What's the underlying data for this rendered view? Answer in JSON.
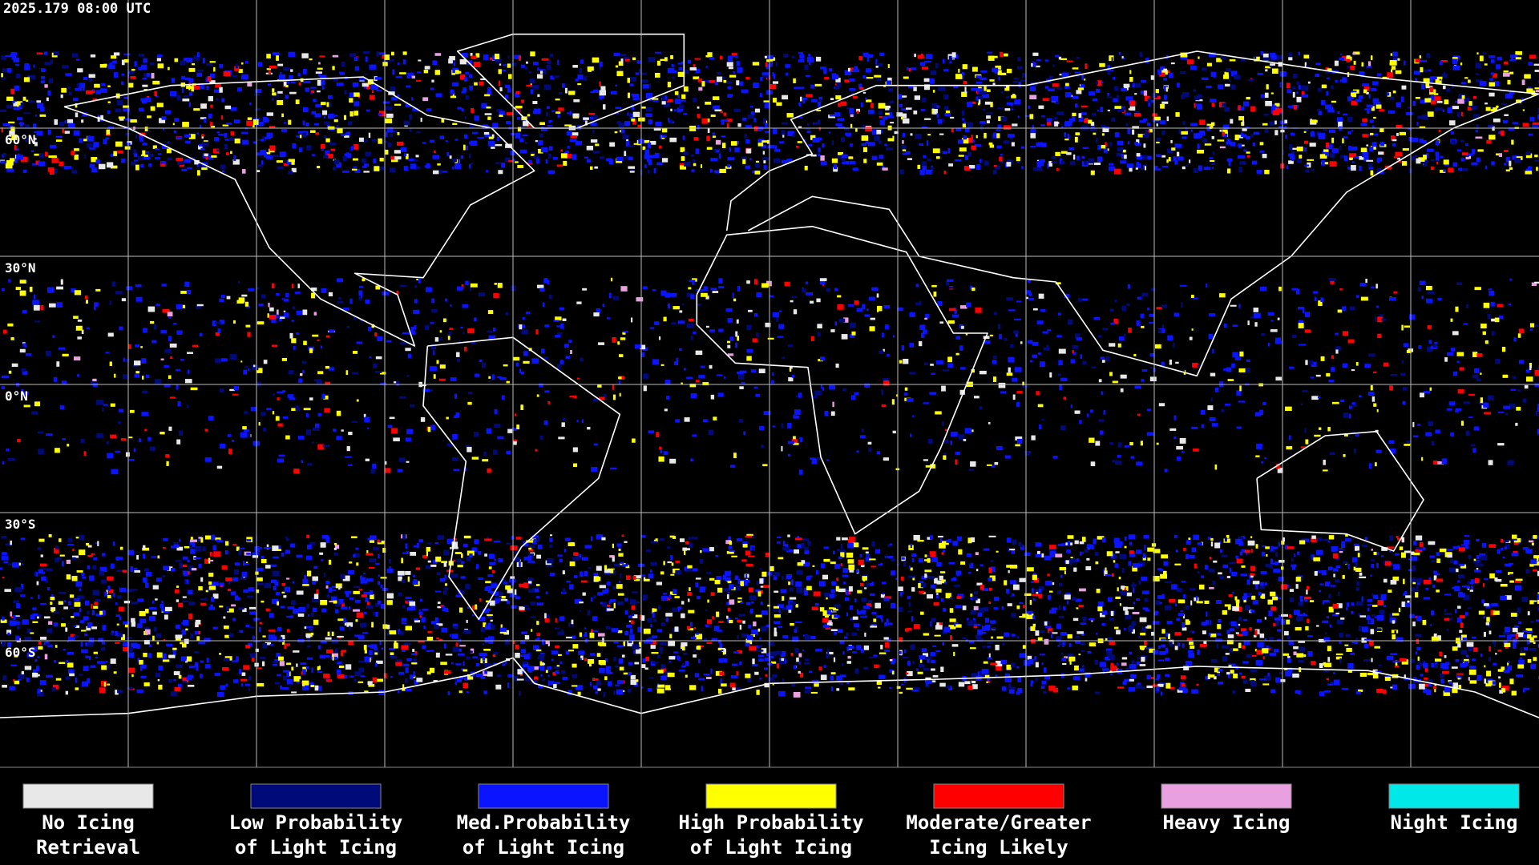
{
  "timestamp": "2025.179 08:00 UTC",
  "latitude_labels": [
    "60°N",
    "30°N",
    "0°N",
    "30°S",
    "60°S"
  ],
  "legend": [
    {
      "lines": [
        "No Icing",
        "Retrieval"
      ],
      "color": "#e8e8e8"
    },
    {
      "lines": [
        "Low Probability",
        "of Light Icing"
      ],
      "color": "#000a78"
    },
    {
      "lines": [
        "Med.Probability",
        "of Light Icing"
      ],
      "color": "#0a14ff"
    },
    {
      "lines": [
        "High Probability",
        "of Light Icing"
      ],
      "color": "#ffff00"
    },
    {
      "lines": [
        "Moderate/Greater",
        "Icing Likely"
      ],
      "color": "#ff0000"
    },
    {
      "lines": [
        "Heavy Icing"
      ],
      "color": "#e8a0e0"
    },
    {
      "lines": [
        "Night Icing"
      ],
      "color": "#00e8e8"
    }
  ]
}
